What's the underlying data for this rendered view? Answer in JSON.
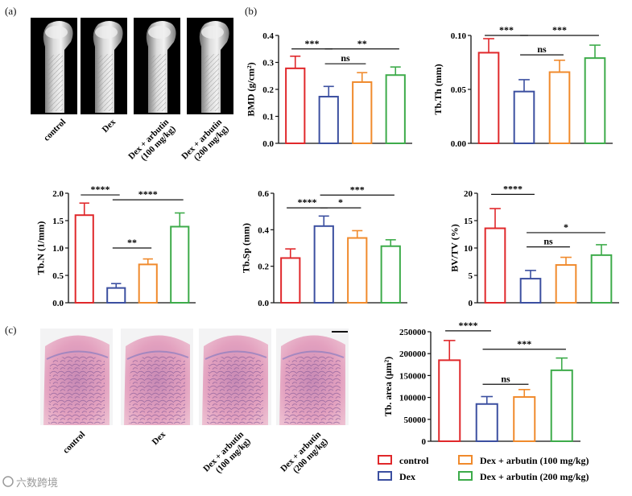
{
  "panel_labels": {
    "a": "(a)",
    "b": "(b)",
    "c": "(c)"
  },
  "groups": [
    "control",
    "Dex",
    "Dex + arbutin\n(100 mg/kg)",
    "Dex + arbutin\n(200 mg/kg)"
  ],
  "colors": [
    "#e0282b",
    "#3b4fa0",
    "#f08a2c",
    "#3dab4a"
  ],
  "legend": [
    {
      "label": "control",
      "color": "#e0282b"
    },
    {
      "label": "Dex",
      "color": "#3b4fa0"
    },
    {
      "label": "Dex + arbutin (100 mg/kg)",
      "color": "#f08a2c"
    },
    {
      "label": "Dex + arbutin (200 mg/kg)",
      "color": "#3dab4a"
    }
  ],
  "watermark": "六数跨境",
  "chart_data": [
    {
      "type": "bar",
      "ylabel": "BMD (g/cm²)",
      "ylim": [
        0,
        0.4
      ],
      "yticks": [
        0,
        0.1,
        0.2,
        0.3,
        0.4
      ],
      "ytick_labels": [
        "0.0",
        "0.1",
        "0.2",
        "0.3",
        "0.4"
      ],
      "values": [
        0.278,
        0.173,
        0.227,
        0.253
      ],
      "errors": [
        0.045,
        0.038,
        0.035,
        0.03
      ],
      "sig": [
        {
          "from": 0,
          "to": 1,
          "level": 0.35,
          "label": "***"
        },
        {
          "from": 1,
          "to": 3,
          "level": 0.35,
          "label": "**"
        },
        {
          "from": 1,
          "to": 2,
          "level": 0.295,
          "label": "ns"
        }
      ]
    },
    {
      "type": "bar",
      "ylabel": "Tb.Th (mm)",
      "ylim": [
        0,
        0.1
      ],
      "yticks": [
        0,
        0.05,
        0.1
      ],
      "ytick_labels": [
        "0.00",
        "0.05",
        "0.10"
      ],
      "values": [
        0.084,
        0.048,
        0.066,
        0.079
      ],
      "errors": [
        0.013,
        0.011,
        0.011,
        0.012
      ],
      "sig": [
        {
          "from": 0,
          "to": 1,
          "level": 0.1,
          "label": "***"
        },
        {
          "from": 1,
          "to": 3,
          "level": 0.1,
          "label": "***"
        },
        {
          "from": 1,
          "to": 2,
          "level": 0.082,
          "label": "ns"
        }
      ]
    },
    {
      "type": "bar",
      "ylabel": "Tb.N (1/mm)",
      "ylim": [
        0,
        2
      ],
      "yticks": [
        0,
        0.5,
        1,
        1.5,
        2
      ],
      "ytick_labels": [
        "0.0",
        "0.5",
        "1.0",
        "1.5",
        "2.0"
      ],
      "values": [
        1.6,
        0.27,
        0.7,
        1.39
      ],
      "errors": [
        0.22,
        0.08,
        0.1,
        0.25
      ],
      "sig": [
        {
          "from": 0,
          "to": 1,
          "level": 1.97,
          "label": "****"
        },
        {
          "from": 1,
          "to": 3,
          "level": 1.88,
          "label": "****"
        },
        {
          "from": 1,
          "to": 2,
          "level": 1.0,
          "label": "**"
        }
      ]
    },
    {
      "type": "bar",
      "ylabel": "Tb.Sp (mm)",
      "ylim": [
        0,
        0.6
      ],
      "yticks": [
        0,
        0.2,
        0.4,
        0.6
      ],
      "ytick_labels": [
        "0.0",
        "0.2",
        "0.4",
        "0.6"
      ],
      "values": [
        0.245,
        0.42,
        0.355,
        0.31
      ],
      "errors": [
        0.05,
        0.055,
        0.04,
        0.035
      ],
      "sig": [
        {
          "from": 0,
          "to": 1,
          "level": 0.52,
          "label": "****"
        },
        {
          "from": 1,
          "to": 3,
          "level": 0.59,
          "label": "***"
        },
        {
          "from": 1,
          "to": 2,
          "level": 0.52,
          "label": "*"
        }
      ]
    },
    {
      "type": "bar",
      "ylabel": "BV/TV (%)",
      "ylim": [
        0,
        20
      ],
      "yticks": [
        0,
        5,
        10,
        15,
        20
      ],
      "ytick_labels": [
        "0",
        "5",
        "10",
        "15",
        "20"
      ],
      "values": [
        13.6,
        4.4,
        6.9,
        8.7
      ],
      "errors": [
        3.6,
        1.5,
        1.4,
        1.9
      ],
      "sig": [
        {
          "from": 0,
          "to": 1,
          "level": 19.8,
          "label": "****"
        },
        {
          "from": 1,
          "to": 3,
          "level": 12.8,
          "label": "*"
        },
        {
          "from": 1,
          "to": 2,
          "level": 10.2,
          "label": "ns"
        }
      ]
    },
    {
      "type": "bar",
      "ylabel": "Tb. area (μm²)",
      "ylim": [
        0,
        250000
      ],
      "yticks": [
        0,
        50000,
        100000,
        150000,
        200000,
        250000
      ],
      "ytick_labels": [
        "0",
        "50000",
        "100000",
        "150000",
        "200000",
        "250000"
      ],
      "values": [
        185000,
        85000,
        101000,
        162000
      ],
      "errors": [
        45000,
        17000,
        17000,
        28000
      ],
      "sig": [
        {
          "from": 0,
          "to": 1,
          "level": 252000,
          "label": "****"
        },
        {
          "from": 1,
          "to": 3,
          "level": 210000,
          "label": "***"
        },
        {
          "from": 1,
          "to": 2,
          "level": 130000,
          "label": "ns"
        }
      ]
    }
  ]
}
